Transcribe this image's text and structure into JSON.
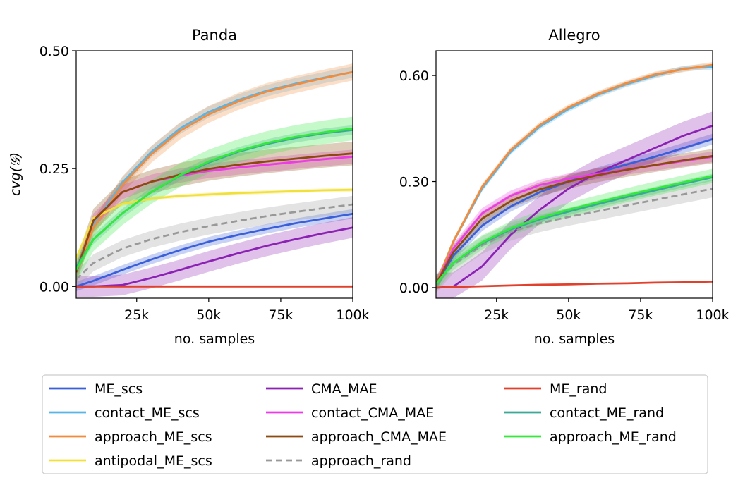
{
  "colors": {
    "ME_scs": "#3a5fd9",
    "contact_ME_scs": "#5ab4e6",
    "approach_ME_scs": "#f28c3c",
    "antipodal_ME_scs": "#f2e03a",
    "CMA_MAE": "#8c22b4",
    "contact_CMA_MAE": "#ec3ce6",
    "approach_CMA_MAE": "#8c4a10",
    "approach_rand": "#999999",
    "ME_rand": "#e0402c",
    "contact_ME_rand": "#3ca896",
    "approach_ME_rand": "#34e83c"
  },
  "legend": {
    "placement": "bottom, 3 columns",
    "entries": [
      {
        "label": "ME_scs",
        "key": "ME_scs",
        "dashed": false
      },
      {
        "label": "contact_ME_scs",
        "key": "contact_ME_scs",
        "dashed": false
      },
      {
        "label": "approach_ME_scs",
        "key": "approach_ME_scs",
        "dashed": false
      },
      {
        "label": "antipodal_ME_scs",
        "key": "antipodal_ME_scs",
        "dashed": false
      },
      {
        "label": "CMA_MAE",
        "key": "CMA_MAE",
        "dashed": false
      },
      {
        "label": "contact_CMA_MAE",
        "key": "contact_CMA_MAE",
        "dashed": false
      },
      {
        "label": "approach_CMA_MAE",
        "key": "approach_CMA_MAE",
        "dashed": false
      },
      {
        "label": "approach_rand",
        "key": "approach_rand",
        "dashed": true
      },
      {
        "label": "ME_rand",
        "key": "ME_rand",
        "dashed": false
      },
      {
        "label": "contact_ME_rand",
        "key": "contact_ME_rand",
        "dashed": false
      },
      {
        "label": "approach_ME_rand",
        "key": "approach_ME_rand",
        "dashed": false
      }
    ]
  },
  "chart_data": [
    {
      "type": "line",
      "title": "Panda",
      "xlabel": "no. samples",
      "ylabel": "cvg(𝒢)",
      "xlim": [
        4000,
        100000
      ],
      "ylim": [
        -0.025,
        0.5
      ],
      "xticks": [
        25000,
        50000,
        75000,
        100000
      ],
      "xtick_labels": [
        "25k",
        "50k",
        "75k",
        "100k"
      ],
      "yticks": [
        0.0,
        0.25,
        0.5
      ],
      "ytick_labels": [
        "0.00",
        "0.25",
        "0.50"
      ],
      "grid": false,
      "x": [
        4000,
        10000,
        20000,
        30000,
        40000,
        50000,
        60000,
        70000,
        80000,
        90000,
        100000
      ],
      "series": [
        {
          "name": "ME_scs",
          "key": "ME_scs",
          "dashed": false,
          "band": 0.01,
          "values": [
            0.0,
            0.012,
            0.035,
            0.057,
            0.077,
            0.095,
            0.109,
            0.122,
            0.134,
            0.144,
            0.154
          ]
        },
        {
          "name": "contact_ME_scs",
          "key": "contact_ME_scs",
          "dashed": false,
          "band": 0.012,
          "values": [
            0.03,
            0.13,
            0.22,
            0.285,
            0.335,
            0.37,
            0.395,
            0.415,
            0.43,
            0.443,
            0.455
          ]
        },
        {
          "name": "approach_ME_scs",
          "key": "approach_ME_scs",
          "dashed": false,
          "band": 0.018,
          "values": [
            0.03,
            0.125,
            0.215,
            0.28,
            0.33,
            0.365,
            0.392,
            0.413,
            0.428,
            0.442,
            0.455
          ]
        },
        {
          "name": "antipodal_ME_scs",
          "key": "antipodal_ME_scs",
          "dashed": false,
          "band": 0.004,
          "values": [
            0.06,
            0.145,
            0.175,
            0.186,
            0.192,
            0.195,
            0.198,
            0.2,
            0.202,
            0.204,
            0.205
          ]
        },
        {
          "name": "CMA_MAE",
          "key": "CMA_MAE",
          "dashed": false,
          "band": 0.022,
          "values": [
            0.0,
            0.0,
            0.003,
            0.018,
            0.035,
            0.053,
            0.07,
            0.086,
            0.1,
            0.113,
            0.125
          ]
        },
        {
          "name": "contact_CMA_MAE",
          "key": "contact_CMA_MAE",
          "dashed": false,
          "band": 0.015,
          "values": [
            0.03,
            0.14,
            0.2,
            0.222,
            0.235,
            0.245,
            0.252,
            0.258,
            0.264,
            0.27,
            0.275
          ]
        },
        {
          "name": "approach_CMA_MAE",
          "key": "approach_CMA_MAE",
          "dashed": false,
          "band": 0.025,
          "values": [
            0.03,
            0.14,
            0.2,
            0.222,
            0.237,
            0.249,
            0.258,
            0.265,
            0.271,
            0.277,
            0.282
          ]
        },
        {
          "name": "approach_rand",
          "key": "approach_rand",
          "dashed": true,
          "band": 0.018,
          "values": [
            0.015,
            0.05,
            0.08,
            0.1,
            0.115,
            0.128,
            0.139,
            0.149,
            0.158,
            0.166,
            0.174
          ]
        },
        {
          "name": "ME_rand",
          "key": "ME_rand",
          "dashed": false,
          "band": 0.0,
          "values": [
            0.0,
            0.0,
            0.0,
            0.0,
            0.0,
            0.0,
            0.0,
            0.0,
            0.0,
            0.0,
            0.0
          ]
        },
        {
          "name": "contact_ME_rand",
          "key": "contact_ME_rand",
          "dashed": false,
          "band": 0.01,
          "values": [
            0.04,
            0.1,
            0.155,
            0.2,
            0.235,
            0.263,
            0.285,
            0.302,
            0.315,
            0.325,
            0.332
          ]
        },
        {
          "name": "approach_ME_rand",
          "key": "approach_ME_rand",
          "dashed": false,
          "band": 0.025,
          "values": [
            0.035,
            0.1,
            0.155,
            0.2,
            0.236,
            0.265,
            0.287,
            0.304,
            0.317,
            0.327,
            0.335
          ]
        }
      ]
    },
    {
      "type": "line",
      "title": "Allegro",
      "xlabel": "no. samples",
      "ylabel": "",
      "xlim": [
        4000,
        100000
      ],
      "ylim": [
        -0.03,
        0.67
      ],
      "xticks": [
        25000,
        50000,
        75000,
        100000
      ],
      "xtick_labels": [
        "25k",
        "50k",
        "75k",
        "100k"
      ],
      "yticks": [
        0.0,
        0.3,
        0.6
      ],
      "ytick_labels": [
        "0.00",
        "0.30",
        "0.60"
      ],
      "grid": false,
      "x": [
        4000,
        10000,
        20000,
        30000,
        40000,
        50000,
        60000,
        70000,
        80000,
        90000,
        100000
      ],
      "series": [
        {
          "name": "ME_scs",
          "key": "ME_scs",
          "dashed": false,
          "band": 0.015,
          "values": [
            0.01,
            0.09,
            0.175,
            0.23,
            0.27,
            0.3,
            0.325,
            0.348,
            0.37,
            0.395,
            0.42
          ]
        },
        {
          "name": "contact_ME_scs",
          "key": "contact_ME_scs",
          "dashed": false,
          "band": 0.008,
          "values": [
            0.01,
            0.13,
            0.28,
            0.385,
            0.455,
            0.505,
            0.545,
            0.575,
            0.6,
            0.62,
            0.625
          ]
        },
        {
          "name": "approach_ME_scs",
          "key": "approach_ME_scs",
          "dashed": false,
          "band": 0.008,
          "values": [
            0.01,
            0.13,
            0.285,
            0.39,
            0.46,
            0.51,
            0.548,
            0.578,
            0.603,
            0.618,
            0.63
          ]
        },
        {
          "name": "CMA_MAE",
          "key": "CMA_MAE",
          "dashed": false,
          "band": 0.04,
          "values": [
            0.0,
            0.003,
            0.06,
            0.15,
            0.22,
            0.28,
            0.325,
            0.36,
            0.395,
            0.43,
            0.458
          ]
        },
        {
          "name": "contact_CMA_MAE",
          "key": "contact_CMA_MAE",
          "dashed": false,
          "band": 0.015,
          "values": [
            0.01,
            0.11,
            0.21,
            0.26,
            0.29,
            0.308,
            0.322,
            0.334,
            0.346,
            0.358,
            0.37
          ]
        },
        {
          "name": "approach_CMA_MAE",
          "key": "approach_CMA_MAE",
          "dashed": false,
          "band": 0.02,
          "values": [
            0.01,
            0.1,
            0.195,
            0.245,
            0.278,
            0.3,
            0.318,
            0.333,
            0.347,
            0.36,
            0.372
          ]
        },
        {
          "name": "approach_rand",
          "key": "approach_rand",
          "dashed": true,
          "band": 0.025,
          "values": [
            0.01,
            0.065,
            0.12,
            0.158,
            0.182,
            0.2,
            0.216,
            0.232,
            0.248,
            0.264,
            0.28
          ]
        },
        {
          "name": "ME_rand",
          "key": "ME_rand",
          "dashed": false,
          "band": 0.0,
          "values": [
            0.0,
            0.002,
            0.004,
            0.006,
            0.008,
            0.009,
            0.011,
            0.012,
            0.014,
            0.015,
            0.017
          ]
        },
        {
          "name": "contact_ME_rand",
          "key": "contact_ME_rand",
          "dashed": false,
          "band": 0.01,
          "values": [
            0.01,
            0.07,
            0.125,
            0.165,
            0.193,
            0.215,
            0.236,
            0.256,
            0.275,
            0.294,
            0.312
          ]
        },
        {
          "name": "approach_ME_rand",
          "key": "approach_ME_rand",
          "dashed": false,
          "band": 0.02,
          "values": [
            0.01,
            0.07,
            0.128,
            0.168,
            0.197,
            0.22,
            0.241,
            0.261,
            0.28,
            0.298,
            0.316
          ]
        }
      ]
    }
  ]
}
